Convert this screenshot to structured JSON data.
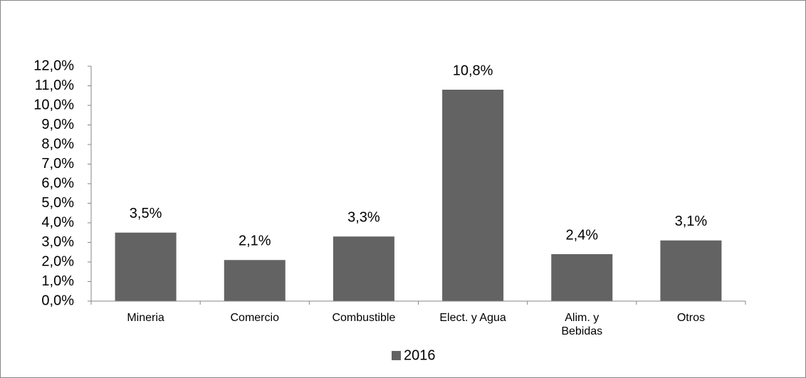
{
  "chart_data": {
    "type": "bar",
    "categories": [
      "Mineria",
      "Comercio",
      "Combustible",
      "Elect. y Agua",
      "Alim. y\nBebidas",
      "Otros"
    ],
    "series": [
      {
        "name": "2016",
        "color": "#636363",
        "values": [
          3.5,
          2.1,
          3.3,
          10.8,
          2.4,
          3.1
        ],
        "value_labels": [
          "3,5%",
          "2,1%",
          "3,3%",
          "10,8%",
          "2,4%",
          "3,1%"
        ]
      }
    ],
    "ylim": [
      0,
      12
    ],
    "yticks": [
      {
        "value": 0,
        "label": "0,0%"
      },
      {
        "value": 1,
        "label": "1,0%"
      },
      {
        "value": 2,
        "label": "2,0%"
      },
      {
        "value": 3,
        "label": "3,0%"
      },
      {
        "value": 4,
        "label": "4,0%"
      },
      {
        "value": 5,
        "label": "5,0%"
      },
      {
        "value": 6,
        "label": "6,0%"
      },
      {
        "value": 7,
        "label": "7,0%"
      },
      {
        "value": 8,
        "label": "8,0%"
      },
      {
        "value": 9,
        "label": "9,0%"
      },
      {
        "value": 10,
        "label": "10,0%"
      },
      {
        "value": 11,
        "label": "11,0%"
      },
      {
        "value": 12,
        "label": "12,0%"
      }
    ],
    "grid": false,
    "legend": "bottom"
  }
}
